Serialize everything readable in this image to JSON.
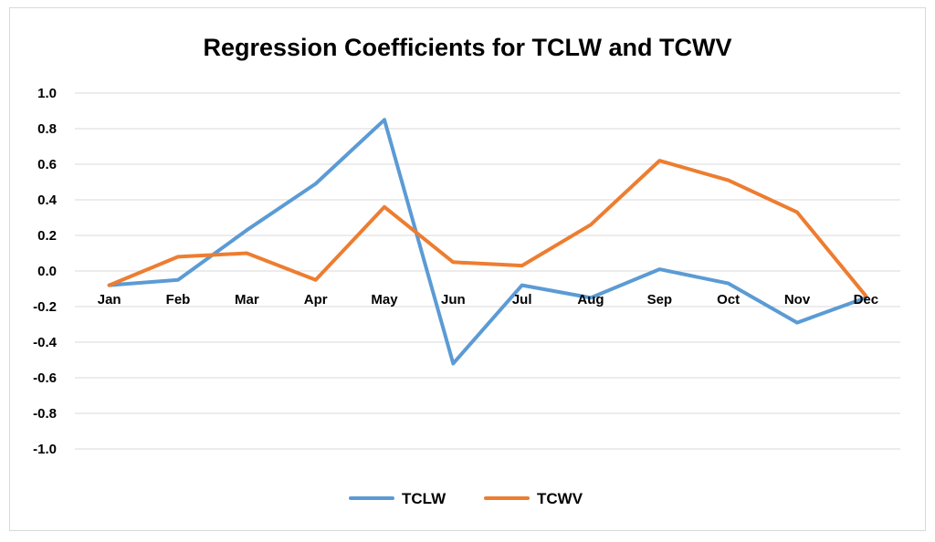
{
  "chart_data": {
    "type": "line",
    "title": "Regression Coefficients for TCLW and TCWV",
    "xlabel": "",
    "ylabel": "",
    "categories": [
      "Jan",
      "Feb",
      "Mar",
      "Apr",
      "May",
      "Jun",
      "Jul",
      "Aug",
      "Sep",
      "Oct",
      "Nov",
      "Dec"
    ],
    "yticks": [
      "1.0",
      "0.8",
      "0.6",
      "0.4",
      "0.2",
      "0.0",
      "-0.2",
      "-0.4",
      "-0.6",
      "-0.8",
      "-1.0"
    ],
    "ylim": [
      -1.0,
      1.0
    ],
    "grid": true,
    "legend_position": "bottom",
    "series": [
      {
        "name": "TCLW",
        "color": "#5b9bd5",
        "values": [
          -0.08,
          -0.05,
          0.23,
          0.49,
          0.85,
          -0.52,
          -0.08,
          -0.15,
          0.01,
          -0.07,
          -0.29,
          -0.15
        ]
      },
      {
        "name": "TCWV",
        "color": "#ed7d31",
        "values": [
          -0.08,
          0.08,
          0.1,
          -0.05,
          0.36,
          0.05,
          0.03,
          0.26,
          0.62,
          0.51,
          0.33,
          -0.14
        ]
      }
    ]
  }
}
